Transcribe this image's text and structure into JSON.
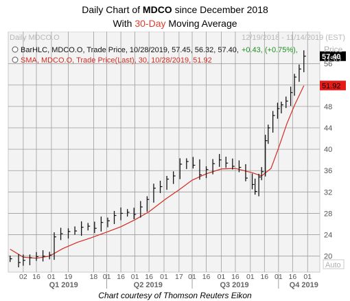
{
  "titles": {
    "line1_prefix": "Daily Chart of ",
    "line1_ticker": "MDCO",
    "line1_suffix": " since December 2018",
    "line2_prefix": "With ",
    "line2_accent": "30-Day",
    "line2_suffix": " Moving Average"
  },
  "credit": "Chart courtesy of Thomson Reuters Eikon",
  "colors": {
    "background": "#ffffff",
    "panel": "#f2f2f2",
    "grid": "#9c9c9c",
    "bars": "#111111",
    "sma": "#d42a1f",
    "accent_title": "#e03a2f",
    "header_text": "#b0b0b0",
    "positive": "#1d8f1d",
    "price_label_bg": "#000000",
    "sma_label_bg": "#e41b17"
  },
  "chart_data": {
    "type": "line",
    "panel_title": "Daily MDCO.O",
    "date_range": "12/19/2018 - 11/14/2019 (EST)",
    "y_axis": {
      "label_top": "Price",
      "label_unit": "USD",
      "ticks": [
        20,
        24,
        28,
        32,
        36,
        40,
        44,
        48,
        52,
        56
      ],
      "ylim": [
        17,
        62
      ],
      "auto_label": "Auto"
    },
    "x_axis": {
      "day_ticks": [
        "02",
        "16",
        "01",
        "19",
        "18",
        "01",
        "16",
        "01",
        "16",
        "01",
        "17",
        "01",
        "16",
        "01",
        "16",
        "01",
        "16",
        "01"
      ],
      "quarter_labels": [
        "Q1 2019",
        "Q2 2019",
        "Q3 2019",
        "Q4 2019"
      ]
    },
    "legend": [
      {
        "text": "BarHLC, MDCO.O, Trade Price, 10/28/2019, 57.45, 56.32, 57.40,",
        "change": "+0.43, (+0.75%),",
        "color": "#111111",
        "change_color": "#1d8f1d"
      },
      {
        "text": "SMA, MDCO.O, Trade Price(Last), 30, 10/28/2019, 51.92",
        "color": "#d42a1f"
      }
    ],
    "last_price": {
      "value": 57.4,
      "label": "57.40"
    },
    "last_sma": {
      "value": 51.92,
      "label": "51.92"
    },
    "series": [
      {
        "name": "BarHLC, MDCO.O",
        "kind": "ohlc_close",
        "points": [
          [
            "2018-12-19",
            19.5
          ],
          [
            "2018-12-28",
            18.8
          ],
          [
            "2019-01-02",
            19.2
          ],
          [
            "2019-01-09",
            19.7
          ],
          [
            "2019-01-16",
            19.9
          ],
          [
            "2019-01-23",
            20.0
          ],
          [
            "2019-01-30",
            20.2
          ],
          [
            "2019-02-04",
            23.6
          ],
          [
            "2019-02-11",
            24.2
          ],
          [
            "2019-02-19",
            24.6
          ],
          [
            "2019-02-26",
            24.7
          ],
          [
            "2019-03-05",
            25.4
          ],
          [
            "2019-03-12",
            25.6
          ],
          [
            "2019-03-19",
            25.2
          ],
          [
            "2019-03-26",
            26.3
          ],
          [
            "2019-04-02",
            26.6
          ],
          [
            "2019-04-09",
            27.6
          ],
          [
            "2019-04-16",
            28.0
          ],
          [
            "2019-04-23",
            28.2
          ],
          [
            "2019-04-30",
            27.8
          ],
          [
            "2019-05-07",
            29.2
          ],
          [
            "2019-05-14",
            30.6
          ],
          [
            "2019-05-21",
            32.7
          ],
          [
            "2019-05-28",
            33.0
          ],
          [
            "2019-06-04",
            34.4
          ],
          [
            "2019-06-11",
            35.0
          ],
          [
            "2019-06-18",
            37.2
          ],
          [
            "2019-06-25",
            37.7
          ],
          [
            "2019-07-02",
            37.0
          ],
          [
            "2019-07-09",
            35.2
          ],
          [
            "2019-07-16",
            36.2
          ],
          [
            "2019-07-23",
            37.3
          ],
          [
            "2019-07-30",
            38.0
          ],
          [
            "2019-08-06",
            37.4
          ],
          [
            "2019-08-13",
            36.8
          ],
          [
            "2019-08-20",
            36.6
          ],
          [
            "2019-08-27",
            34.6
          ],
          [
            "2019-09-03",
            33.4
          ],
          [
            "2019-09-06",
            32.1
          ],
          [
            "2019-09-10",
            34.8
          ],
          [
            "2019-09-13",
            35.8
          ],
          [
            "2019-09-17",
            41.6
          ],
          [
            "2019-09-20",
            44.0
          ],
          [
            "2019-09-25",
            46.3
          ],
          [
            "2019-09-30",
            47.6
          ],
          [
            "2019-10-04",
            48.3
          ],
          [
            "2019-10-09",
            49.0
          ],
          [
            "2019-10-14",
            50.6
          ],
          [
            "2019-10-18",
            53.5
          ],
          [
            "2019-10-23",
            55.0
          ],
          [
            "2019-10-28",
            57.4
          ]
        ]
      },
      {
        "name": "SMA 30",
        "kind": "line",
        "points": [
          [
            "2018-12-19",
            21.3
          ],
          [
            "2019-01-02",
            19.8
          ],
          [
            "2019-01-16",
            19.6
          ],
          [
            "2019-01-30",
            20.0
          ],
          [
            "2019-02-13",
            21.4
          ],
          [
            "2019-03-01",
            22.6
          ],
          [
            "2019-03-15",
            23.4
          ],
          [
            "2019-04-01",
            24.5
          ],
          [
            "2019-04-16",
            25.5
          ],
          [
            "2019-05-01",
            26.8
          ],
          [
            "2019-05-16",
            28.3
          ],
          [
            "2019-06-03",
            30.7
          ],
          [
            "2019-06-17",
            32.4
          ],
          [
            "2019-07-01",
            34.2
          ],
          [
            "2019-07-16",
            35.4
          ],
          [
            "2019-08-01",
            36.3
          ],
          [
            "2019-08-16",
            36.4
          ],
          [
            "2019-09-03",
            35.6
          ],
          [
            "2019-09-13",
            35.0
          ],
          [
            "2019-09-23",
            36.4
          ],
          [
            "2019-10-01",
            40.2
          ],
          [
            "2019-10-10",
            44.8
          ],
          [
            "2019-10-18",
            48.2
          ],
          [
            "2019-10-28",
            51.9
          ]
        ]
      }
    ]
  }
}
